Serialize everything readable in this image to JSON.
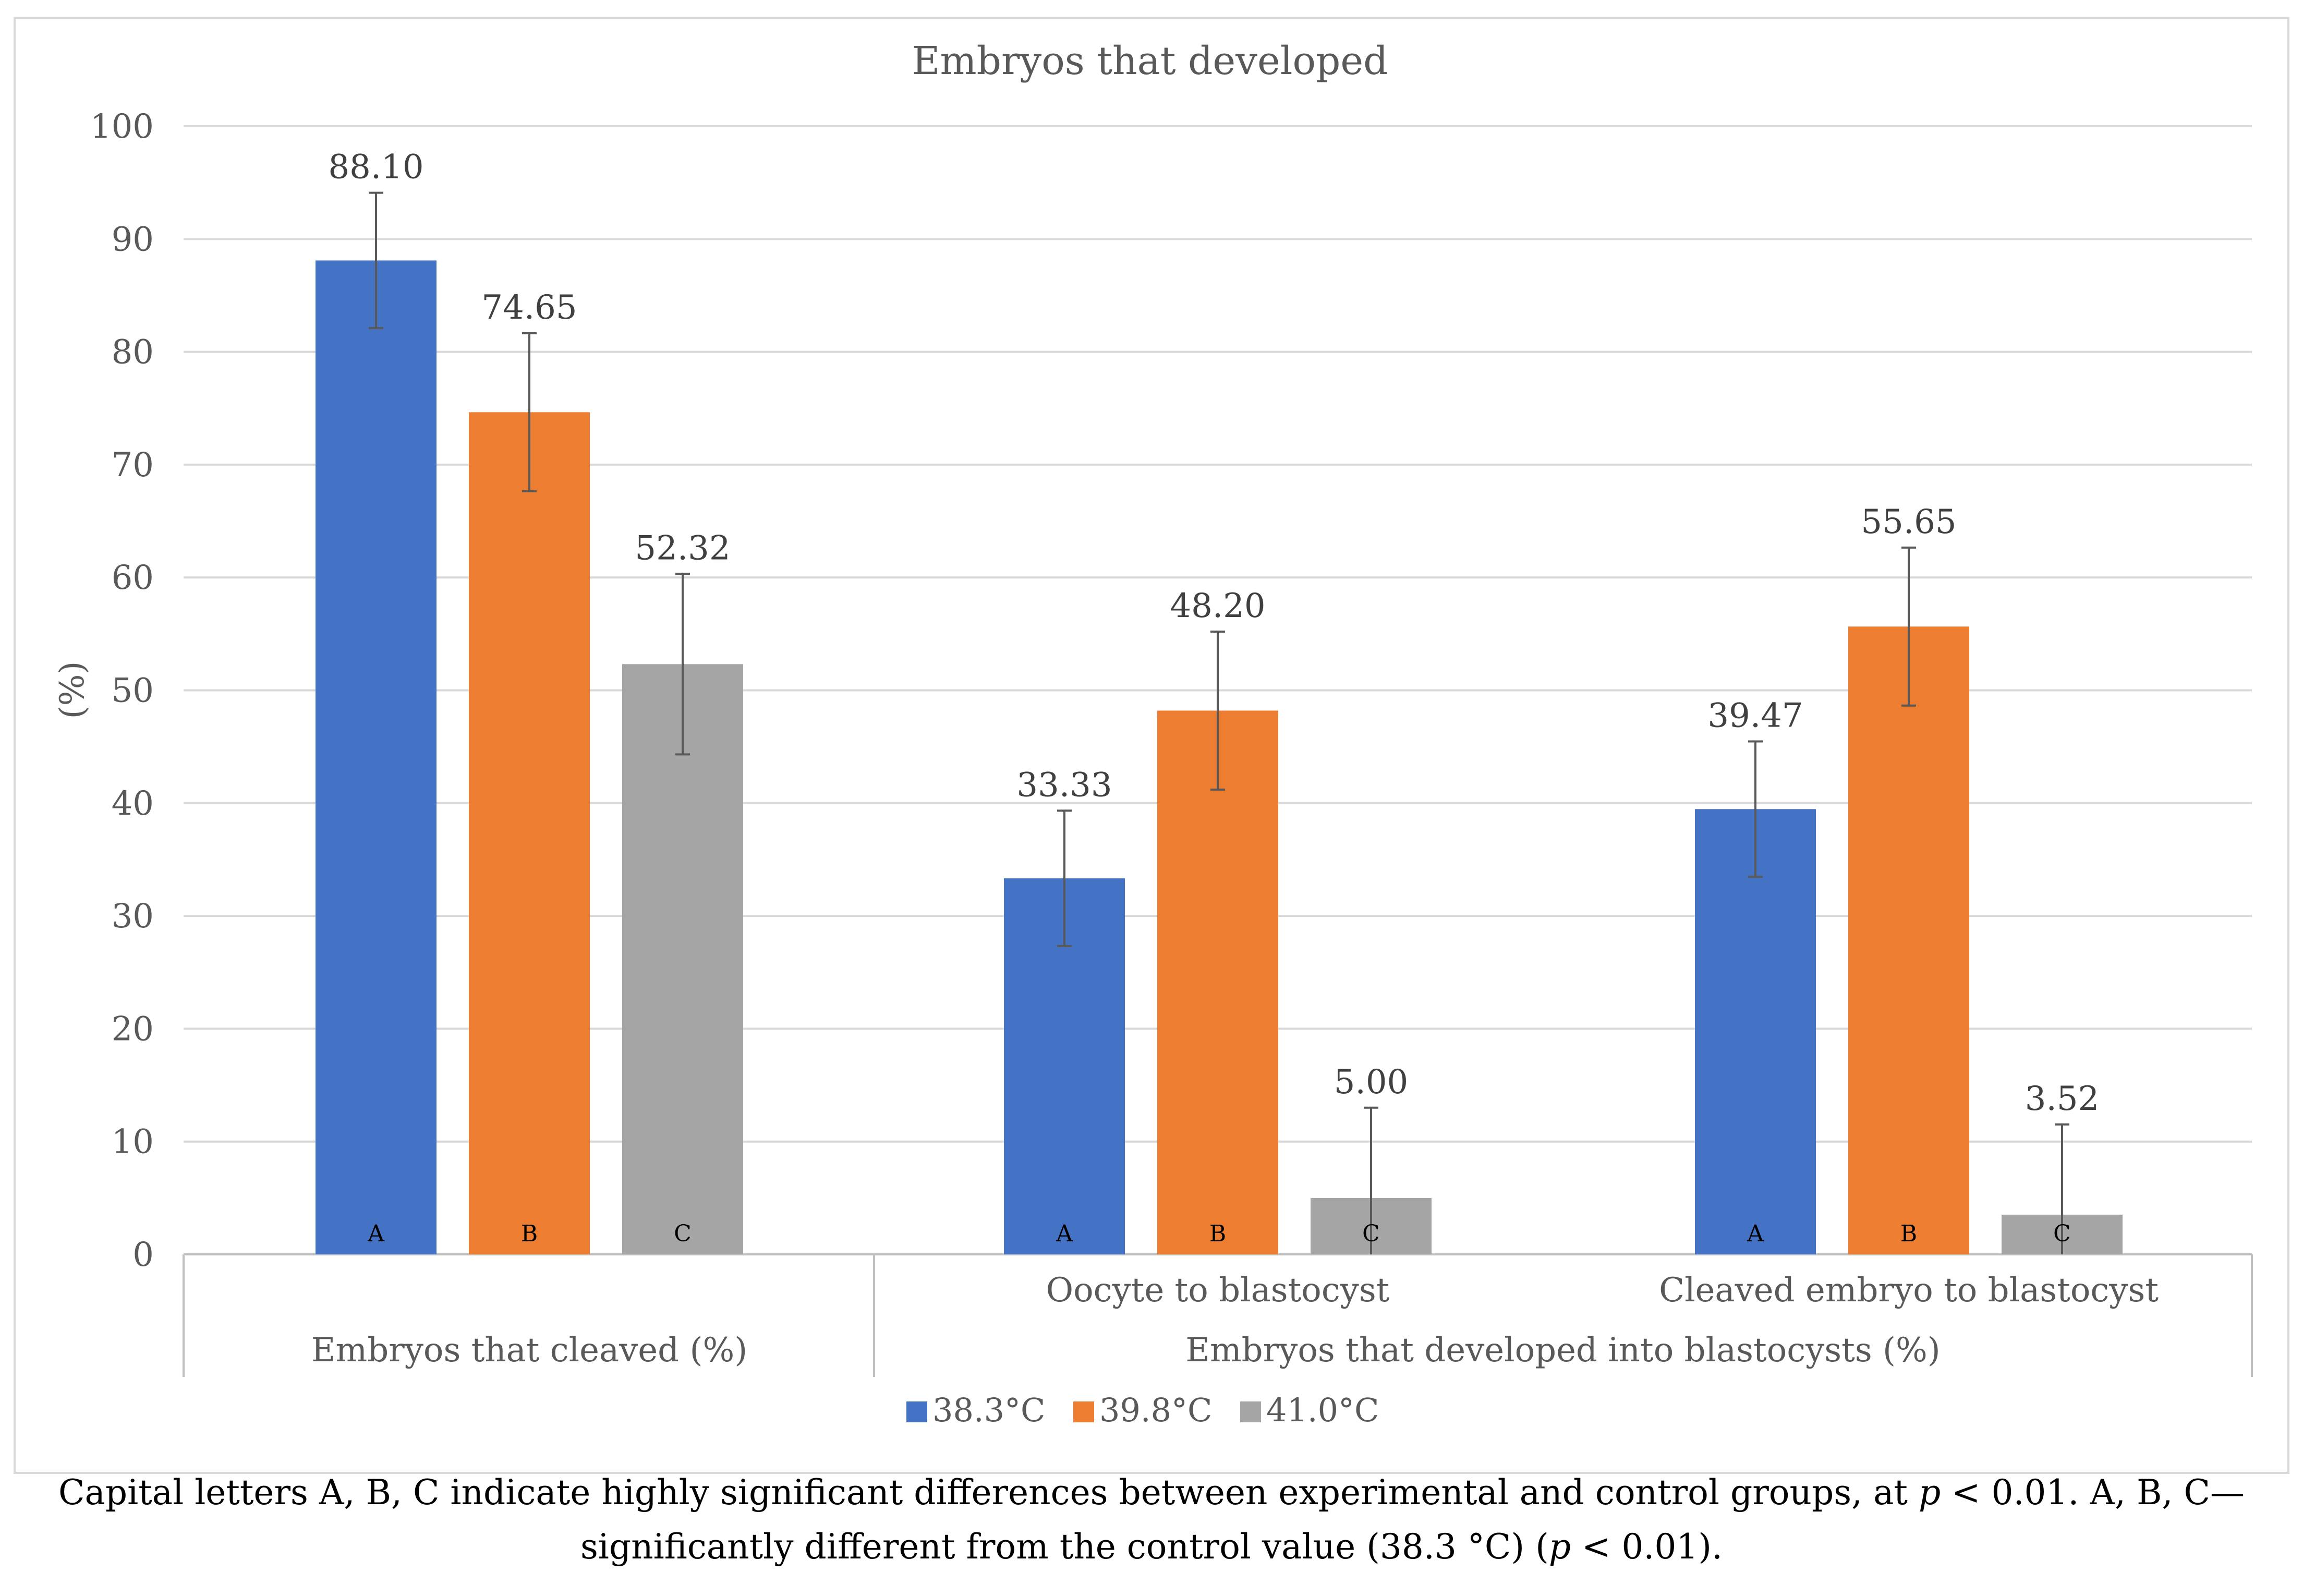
{
  "chart_data": {
    "type": "bar",
    "title": "Embryos that developed",
    "ylabel": "(%)",
    "xlabel": "",
    "ylim": [
      0,
      100
    ],
    "ytick_step": 10,
    "grid": true,
    "groups": [
      {
        "label": "Embryos that cleaved (%)",
        "categories": [
          {
            "label": "",
            "values": [
              88.1,
              74.65,
              52.32
            ],
            "errors": [
              6.0,
              7.0,
              8.0
            ],
            "value_labels": [
              "88.10",
              "74.65",
              "52.32"
            ],
            "letters": [
              "A",
              "B",
              "C"
            ]
          }
        ]
      },
      {
        "label": "Embryos that developed into blastocysts (%)",
        "categories": [
          {
            "label": "Oocyte to blastocyst",
            "values": [
              33.33,
              48.2,
              5.0
            ],
            "errors": [
              6.0,
              7.0,
              8.0
            ],
            "value_labels": [
              "33.33",
              "48.20",
              "5.00"
            ],
            "letters": [
              "A",
              "B",
              "C"
            ]
          },
          {
            "label": "Cleaved embryo to blastocyst",
            "values": [
              39.47,
              55.65,
              3.52
            ],
            "errors": [
              6.0,
              7.0,
              8.0
            ],
            "value_labels": [
              "39.47",
              "55.65",
              "3.52"
            ],
            "letters": [
              "A",
              "B",
              "C"
            ]
          }
        ]
      }
    ],
    "series": [
      {
        "name": "38.3°C",
        "color": "#4472C4"
      },
      {
        "name": "39.8°C",
        "color": "#ED7D31"
      },
      {
        "name": "41.0°C",
        "color": "#A5A5A5"
      }
    ],
    "legend_position": "bottom"
  },
  "caption": {
    "line1_a": "Capital letters A, B, C indicate highly significant differences between experimental and control groups, at ",
    "line1_p": "p",
    "line1_b": " < 0.01. A, B, C—",
    "line2_a": "significantly different from the control value (38.3 °C) (",
    "line2_p": "p",
    "line2_b": " < 0.01)."
  }
}
